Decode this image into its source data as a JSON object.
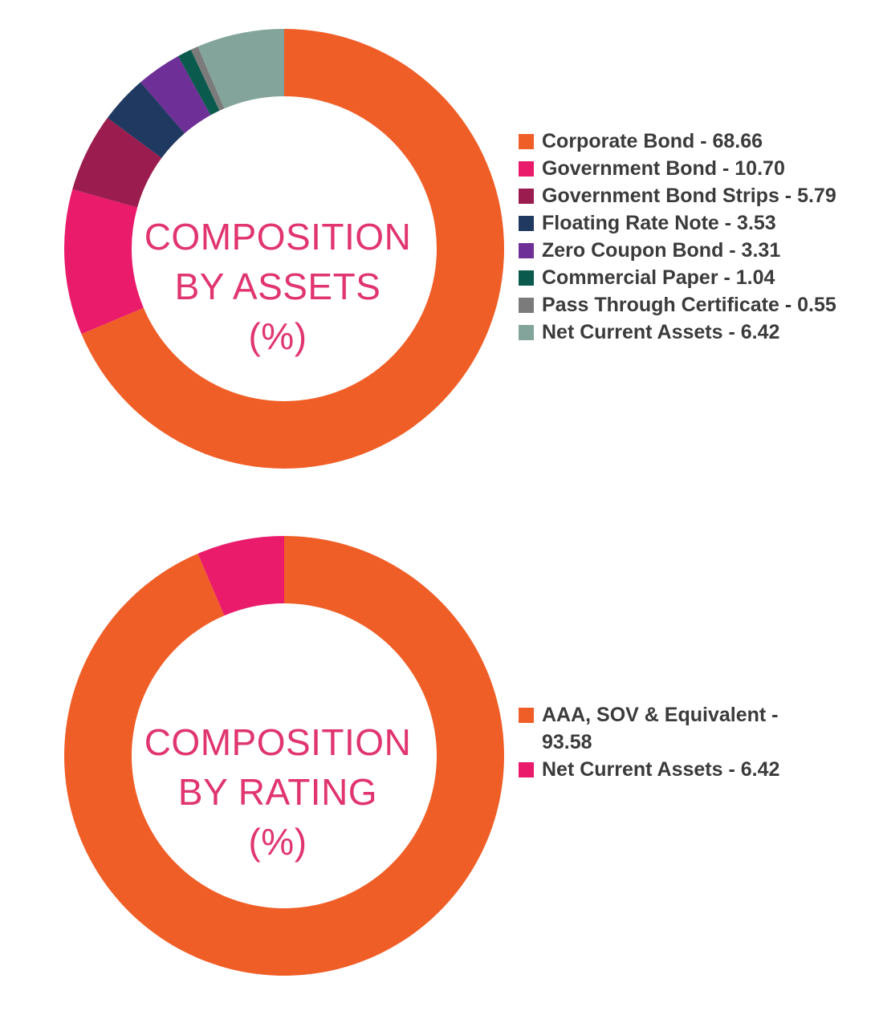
{
  "chart_data": [
    {
      "type": "pie",
      "title": [
        "COMPOSITION",
        "BY ASSETS",
        "(%)"
      ],
      "legend_position": "right",
      "slices": [
        {
          "label": "Corporate Bond - 68.66",
          "value": 68.66,
          "color": "#f05e27"
        },
        {
          "label": "Government Bond - 10.70",
          "value": 10.7,
          "color": "#ea1b6b"
        },
        {
          "label": "Government Bond Strips - 5.79",
          "value": 5.79,
          "color": "#9b1d4f"
        },
        {
          "label": "Floating Rate Note - 3.53",
          "value": 3.53,
          "color": "#1f3961"
        },
        {
          "label": "Zero Coupon Bond - 3.31",
          "value": 3.31,
          "color": "#6e2f96"
        },
        {
          "label": "Commercial Paper - 1.04",
          "value": 1.04,
          "color": "#0b5a4e"
        },
        {
          "label": "Pass Through Certificate - 0.55",
          "value": 0.55,
          "color": "#7b7b7b"
        },
        {
          "label": "Net Current Assets - 6.42",
          "value": 6.42,
          "color": "#82a49b"
        }
      ]
    },
    {
      "type": "pie",
      "title": [
        "COMPOSITION",
        "BY RATING",
        "(%)"
      ],
      "legend_position": "right",
      "slices": [
        {
          "label": "AAA, SOV & Equivalent - 93.58",
          "label_lines": [
            "AAA, SOV & Equivalent -",
            "93.58"
          ],
          "value": 93.58,
          "color": "#f05e27"
        },
        {
          "label": "Net Current Assets - 6.42",
          "label_lines": [
            "Net Current Assets - 6.42"
          ],
          "value": 6.42,
          "color": "#ea1b6b"
        }
      ]
    }
  ]
}
